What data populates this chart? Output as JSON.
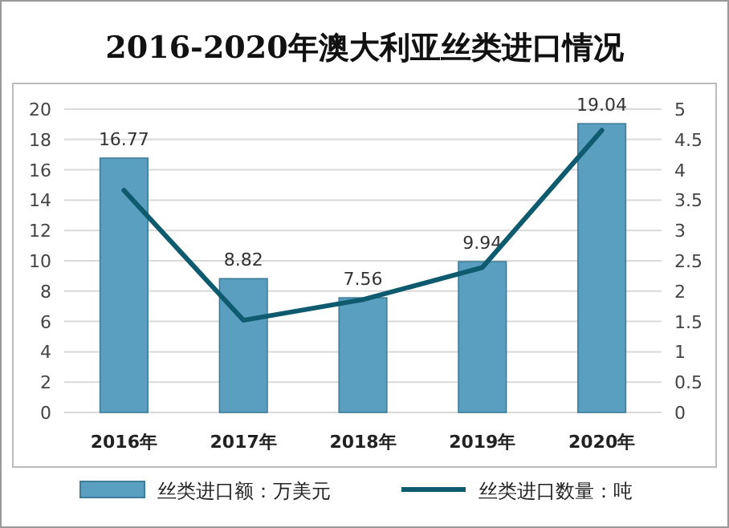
{
  "chart_data": {
    "type": "bar",
    "title": "2016-2020年澳大利亚丝类进口情况",
    "categories": [
      "2016年",
      "2017年",
      "2018年",
      "2019年",
      "2020年"
    ],
    "series": [
      {
        "name": "丝类进口额：万美元",
        "color": "#5a9fc0",
        "values": [
          16.77,
          8.82,
          7.56,
          9.94,
          19.04
        ],
        "value_labels": [
          "16.77",
          "8.82",
          "7.56",
          "9.94",
          "19.04"
        ]
      },
      {
        "name": "丝类进口数量：吨",
        "type": "line",
        "axis": "y2",
        "color": "#0e5a6e",
        "values": [
          3.66,
          1.52,
          1.86,
          2.39,
          4.65
        ]
      }
    ],
    "ylim": [
      0,
      20
    ],
    "yticks": [
      0,
      2,
      4,
      6,
      8,
      10,
      12,
      14,
      16,
      18,
      20
    ],
    "y2lim": [
      0,
      5
    ],
    "y2ticks": [
      0,
      0.5,
      1,
      1.5,
      2,
      2.5,
      3,
      3.5,
      4,
      4.5,
      5
    ],
    "grid": "y",
    "legend": "bottom",
    "marker": "none",
    "line_style": "solid"
  }
}
